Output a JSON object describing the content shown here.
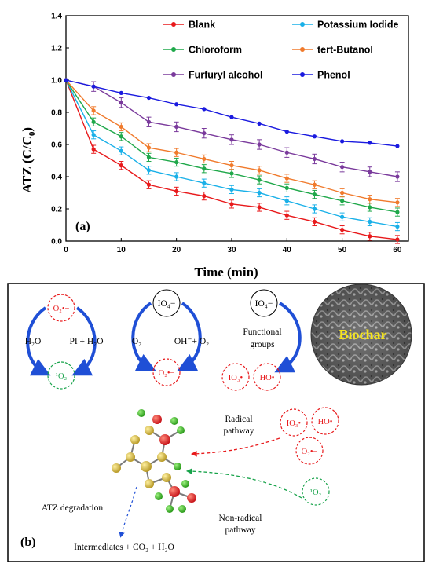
{
  "chart_data": {
    "type": "line",
    "panel_label": "(a)",
    "xlabel": "Time (min)",
    "ylabel": "ATZ (C/C",
    "ylabel_sub": "0",
    "ylabel_close": ")",
    "xlim": [
      0,
      62
    ],
    "ylim": [
      0,
      1.4
    ],
    "xticks": [
      0,
      10,
      20,
      30,
      40,
      50,
      60
    ],
    "yticks": [
      0.0,
      0.2,
      0.4,
      0.6,
      0.8,
      1.0,
      1.2,
      1.4
    ],
    "grid": false,
    "legend_position": "top-right",
    "x": [
      0,
      5,
      10,
      15,
      20,
      25,
      30,
      35,
      40,
      45,
      50,
      55,
      60
    ],
    "series": [
      {
        "name": "Blank",
        "color": "#e8191b",
        "values": [
          1.0,
          0.57,
          0.47,
          0.35,
          0.31,
          0.28,
          0.23,
          0.21,
          0.16,
          0.12,
          0.07,
          0.03,
          0.01
        ],
        "error": 0.025
      },
      {
        "name": "Potassium Iodide",
        "color": "#19b0e8",
        "values": [
          1.0,
          0.66,
          0.56,
          0.44,
          0.4,
          0.36,
          0.32,
          0.3,
          0.25,
          0.2,
          0.15,
          0.12,
          0.09
        ],
        "error": 0.025
      },
      {
        "name": "Chloroform",
        "color": "#1fa84a",
        "values": [
          1.0,
          0.74,
          0.65,
          0.52,
          0.49,
          0.45,
          0.42,
          0.38,
          0.33,
          0.29,
          0.25,
          0.21,
          0.18
        ],
        "error": 0.025
      },
      {
        "name": "tert-Butanol",
        "color": "#f07a2c",
        "values": [
          1.0,
          0.81,
          0.71,
          0.58,
          0.55,
          0.51,
          0.47,
          0.44,
          0.39,
          0.35,
          0.3,
          0.26,
          0.24
        ],
        "error": 0.025
      },
      {
        "name": "Furfuryl alcohol",
        "color": "#7a3a9c",
        "values": [
          1.0,
          0.96,
          0.86,
          0.74,
          0.71,
          0.67,
          0.63,
          0.6,
          0.55,
          0.51,
          0.46,
          0.43,
          0.4
        ],
        "error": 0.03
      },
      {
        "name": "Phenol",
        "color": "#1a1adf",
        "values": [
          1.0,
          0.96,
          0.92,
          0.89,
          0.85,
          0.82,
          0.77,
          0.73,
          0.68,
          0.65,
          0.62,
          0.61,
          0.59
        ],
        "error": 0
      }
    ]
  },
  "mechanism": {
    "panel_label": "(b)",
    "species": {
      "superoxide": "O₂•−",
      "singlet_oxygen": "¹O₂",
      "periodate": "IO₄−",
      "iodate_radical": "IO₃•",
      "hydroxyl_radical": "HO•"
    },
    "labels": {
      "h2o": "H₂O",
      "pi_h2o": "PI + H₂O",
      "o2": "O₂",
      "oh_o2": "OH⁻+ O₂",
      "functional": "Functional",
      "groups": "groups",
      "biochar": "Biochar",
      "radical": "Radical",
      "radical_pathway": "pathway",
      "non_radical": "Non-radical",
      "non_radical_pathway": "pathway",
      "atz_degradation": "ATZ degradation",
      "products": "Intermediates + CO₂ + H₂O"
    }
  }
}
